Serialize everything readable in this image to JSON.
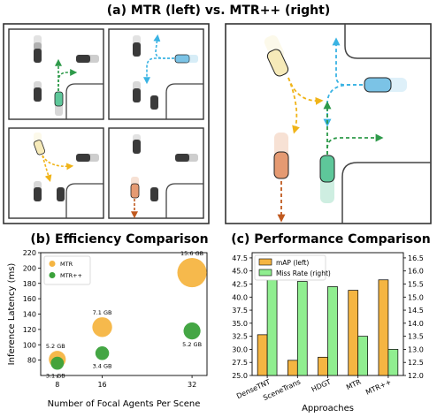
{
  "figure": {
    "title_a": "(a) MTR (left) vs. MTR++ (right)",
    "title_b": "(b) Efficiency Comparison",
    "title_c": "(c) Performance Comparison"
  },
  "colors": {
    "mtr": "#f5b542",
    "mtrpp": "#3aa13a",
    "map_bar": "#f5b542",
    "miss_bar": "#90ee90",
    "gray_car": "#3a3a3a",
    "teal_car": "#5ec79a",
    "cream_car": "#f6eab9",
    "orange_car": "#e59a72",
    "blue_car": "#7bc3e6",
    "arrow_green": "#2e9a4a",
    "arrow_blue": "#3ab3e3",
    "arrow_yellow": "#f0b419",
    "arrow_brown": "#c0591f"
  },
  "chart_data": [
    {
      "type": "scatter",
      "title": "(b) Efficiency Comparison",
      "xlabel": "Number of Focal Agents Per Scene",
      "ylabel": "Inference Latency (ms)",
      "xticks": [
        8,
        16,
        32
      ],
      "xtick_labels": [
        "8",
        "16",
        "32"
      ],
      "ylim": [
        60,
        220
      ],
      "yticks": [
        80,
        100,
        120,
        140,
        160,
        180,
        200,
        220
      ],
      "ytick_labels": [
        "80",
        "100",
        "120",
        "140",
        "160",
        "180",
        "200",
        "220"
      ],
      "legend_position": "top-left",
      "series": [
        {
          "name": "MTR",
          "color": "#f5b542",
          "points": [
            {
              "x": 8,
              "y": 81,
              "memory_gb": 5.2,
              "label": "5.2 GB"
            },
            {
              "x": 16,
              "y": 123,
              "memory_gb": 7.1,
              "label": "7.1 GB"
            },
            {
              "x": 32,
              "y": 194,
              "memory_gb": 15.6,
              "label": "15.6 GB"
            }
          ]
        },
        {
          "name": "MTR++",
          "color": "#3aa13a",
          "points": [
            {
              "x": 8,
              "y": 76,
              "memory_gb": 3.1,
              "label": "3.1 GB"
            },
            {
              "x": 16,
              "y": 89,
              "memory_gb": 3.4,
              "label": "3.4 GB"
            },
            {
              "x": 32,
              "y": 118,
              "memory_gb": 5.2,
              "label": "5.2 GB"
            }
          ]
        }
      ]
    },
    {
      "type": "bar",
      "title": "(c) Performance Comparison",
      "xlabel": "Approaches",
      "categories": [
        "DenseTNT",
        "SceneTrans",
        "HDGT",
        "MTR",
        "MTR++"
      ],
      "legend_position": "top-left",
      "left_axis": {
        "ylim": [
          25.0,
          48.5
        ],
        "ticks": [
          25.0,
          27.5,
          30.0,
          32.5,
          35.0,
          37.5,
          40.0,
          42.5,
          45.0,
          47.5
        ],
        "tick_labels": [
          "25.0",
          "27.5",
          "30.0",
          "32.5",
          "35.0",
          "37.5",
          "40.0",
          "42.5",
          "45.0",
          "47.5"
        ]
      },
      "right_axis": {
        "ylim": [
          12.0,
          16.7
        ],
        "ticks": [
          12.0,
          12.5,
          13.0,
          13.5,
          14.0,
          14.5,
          15.0,
          15.5,
          16.0,
          16.5
        ],
        "tick_labels": [
          "12.0",
          "12.5",
          "13.0",
          "13.5",
          "14.0",
          "14.5",
          "15.0",
          "15.5",
          "16.0",
          "16.5"
        ]
      },
      "series": [
        {
          "name": "mAP (left)",
          "axis": "left",
          "color": "#f5b542",
          "values": [
            32.8,
            27.9,
            28.5,
            41.3,
            43.3
          ]
        },
        {
          "name": "Miss Rate (right)",
          "axis": "right",
          "color": "#90ee90",
          "values": [
            15.8,
            15.6,
            15.4,
            13.5,
            13.0
          ]
        }
      ]
    }
  ]
}
